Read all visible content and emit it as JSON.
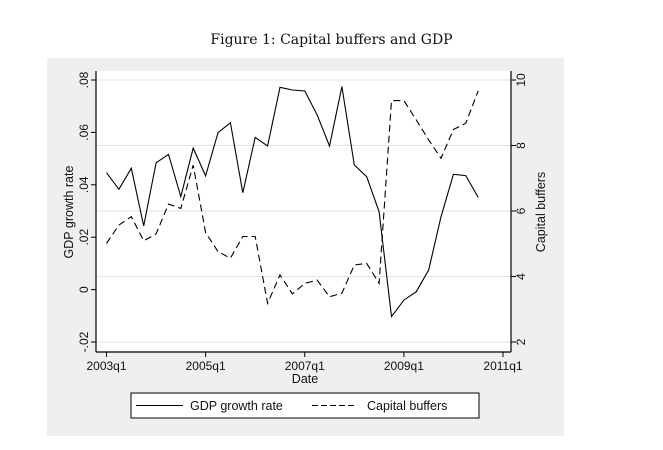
{
  "figure": {
    "title": "Figure 1: Capital buffers and GDP"
  },
  "chart_data": {
    "type": "line",
    "title": "Figure 1: Capital buffers and GDP",
    "xlabel": "Date",
    "ylabel": "GDP growth rate",
    "y2label": "Capital buffers",
    "x_tick_labels": [
      "2003q1",
      "2005q1",
      "2007q1",
      "2009q1",
      "2011q1"
    ],
    "y_tick_labels": [
      "-.02",
      "0",
      ".02",
      ".04",
      ".06",
      ".08"
    ],
    "y_ticks": [
      -0.02,
      0,
      0.02,
      0.04,
      0.06,
      0.08
    ],
    "y2_tick_labels": [
      "2",
      "4",
      "6",
      "8",
      "10"
    ],
    "y2_ticks": [
      2,
      4,
      6,
      8,
      10
    ],
    "ylim": [
      -0.02,
      0.08
    ],
    "y2lim": [
      2,
      10
    ],
    "xlim": [
      "2003q1",
      "2011q1"
    ],
    "grid": true,
    "legend_position": "bottom",
    "x": [
      "2003q1",
      "2003q2",
      "2003q3",
      "2003q4",
      "2004q1",
      "2004q2",
      "2004q3",
      "2004q4",
      "2005q1",
      "2005q2",
      "2005q3",
      "2005q4",
      "2006q1",
      "2006q2",
      "2006q3",
      "2006q4",
      "2007q1",
      "2007q2",
      "2007q3",
      "2007q4",
      "2008q1",
      "2008q2",
      "2008q3",
      "2008q4",
      "2009q1",
      "2009q2",
      "2009q3",
      "2009q4",
      "2010q1",
      "2010q2",
      "2010q3"
    ],
    "series": [
      {
        "name": "GDP growth rate",
        "axis": "left",
        "style": "solid",
        "values": [
          0.0446,
          0.0383,
          0.0463,
          0.0243,
          0.0484,
          0.0516,
          0.0355,
          0.054,
          0.0434,
          0.0599,
          0.0637,
          0.037,
          0.0581,
          0.0548,
          0.0772,
          0.0762,
          0.0758,
          0.0667,
          0.0548,
          0.0775,
          0.0476,
          0.0431,
          0.0297,
          -0.0103,
          -0.004,
          -0.0008,
          0.0075,
          0.0278,
          0.044,
          0.0435,
          0.0352
        ]
      },
      {
        "name": "Capital buffers",
        "axis": "right",
        "style": "dashed",
        "values": [
          5.01,
          5.57,
          5.83,
          5.09,
          5.3,
          6.21,
          6.08,
          7.4,
          5.34,
          4.76,
          4.56,
          5.22,
          5.22,
          3.18,
          4.05,
          3.47,
          3.79,
          3.89,
          3.38,
          3.49,
          4.35,
          4.4,
          3.79,
          9.37,
          9.37,
          8.78,
          8.17,
          7.61,
          8.49,
          8.68,
          9.67
        ]
      }
    ],
    "legend": [
      "GDP growth rate",
      "Capital buffers"
    ]
  }
}
